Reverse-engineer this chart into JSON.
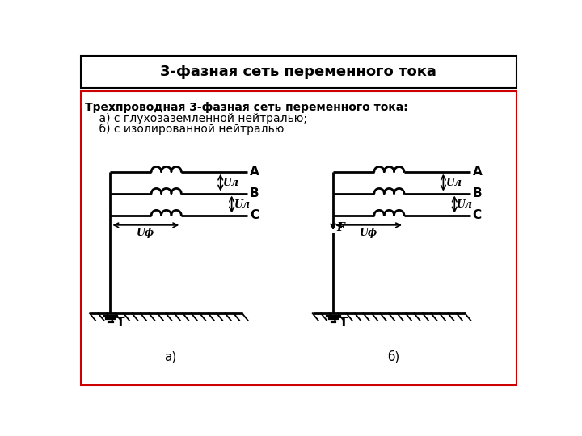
{
  "title": "3-фазная сеть переменного тока",
  "sub1": "Трехпроводная 3-фазная сеть переменного тока:",
  "sub2": "    а) с глухозаземленной нейтралью;",
  "sub3": "    б) с изолированной нейтралью",
  "label_a": "а)",
  "label_b": "б)",
  "bg_color": "#ffffff",
  "border_color_title": "#000000",
  "border_color_main": "#cc0000",
  "line_color": "#000000"
}
